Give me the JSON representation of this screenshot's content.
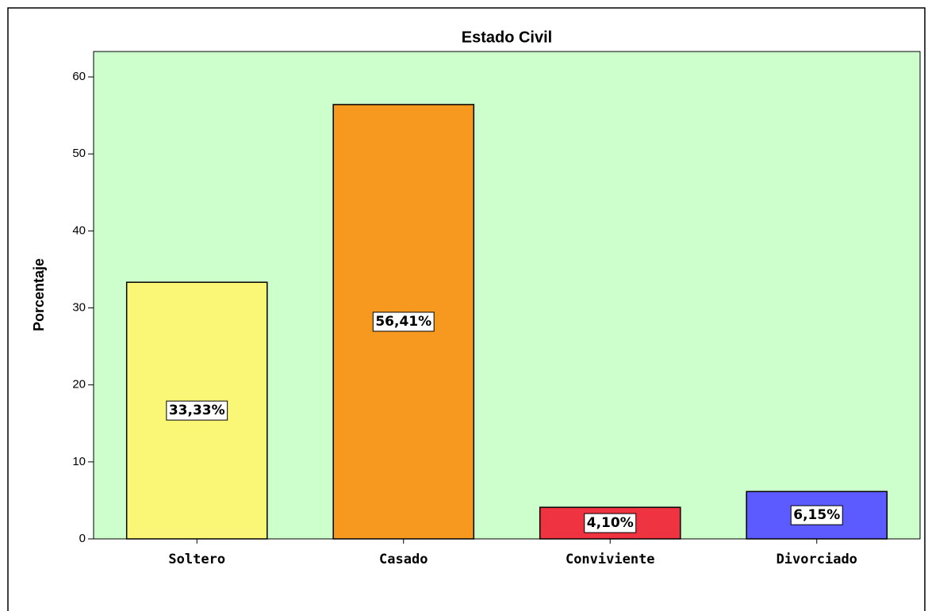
{
  "chart_data": {
    "type": "bar",
    "title": "Estado Civil",
    "y_label": "Porcentaje",
    "categories": [
      "Soltero",
      "Casado",
      "Conviviente",
      "Divorciado"
    ],
    "values": [
      33.33,
      56.41,
      4.1,
      6.15
    ],
    "value_labels": [
      "33,33%",
      "56,41%",
      "4,10%",
      "6,15%"
    ],
    "colors": [
      "#f9f775",
      "#f7991f",
      "#ef3340",
      "#5b5bff"
    ],
    "background": "#ccffcc",
    "ylim": [
      0,
      63.3
    ],
    "yticks": [
      0,
      10,
      20,
      30,
      40,
      50,
      60
    ],
    "grid": false
  }
}
